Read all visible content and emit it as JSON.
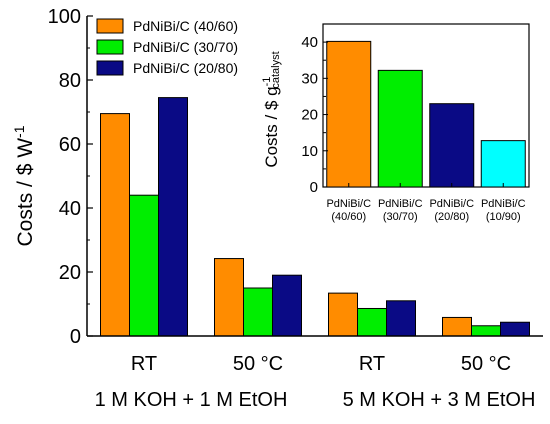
{
  "chart_data": [
    {
      "type": "bar",
      "ylabel_main": "Costs / $ W",
      "ylabel_sup": "-1",
      "ylim": [
        0,
        100
      ],
      "yticks": [
        0,
        20,
        40,
        60,
        80,
        100
      ],
      "categories": [
        "RT",
        "50 °C",
        "RT",
        "50 °C"
      ],
      "groups": [
        "1 M KOH + 1 M EtOH",
        "5 M KOH + 3 M EtOH"
      ],
      "series": [
        {
          "name": "PdNiBi/C (40/60)",
          "color": "#FF8C00",
          "values": [
            69.5,
            24.2,
            13.4,
            5.8
          ]
        },
        {
          "name": "PdNiBi/C (30/70)",
          "color": "#00EE00",
          "values": [
            44.0,
            15.0,
            8.6,
            3.2
          ]
        },
        {
          "name": "PdNiBi/C (20/80)",
          "color": "#0A0A85",
          "values": [
            74.5,
            19.0,
            11.0,
            4.3
          ]
        }
      ],
      "legend_position": "top-left"
    },
    {
      "type": "bar",
      "ylabel_main": "Costs / $ g",
      "ylabel_sup": "-1",
      "ylabel_sub": "catalyst",
      "ylim": [
        0,
        45
      ],
      "yticks": [
        0,
        10,
        20,
        30,
        40
      ],
      "categories": [
        {
          "line1": "PdNiBi/C",
          "line2": "(40/60)"
        },
        {
          "line1": "PdNiBi/C",
          "line2": "(30/70)"
        },
        {
          "line1": "PdNiBi/C",
          "line2": "(20/80)"
        },
        {
          "line1": "PdNiBi/C",
          "line2": "(10/90)"
        }
      ],
      "values": [
        40.2,
        32.2,
        23.0,
        12.8
      ],
      "colors": [
        "#FF8C00",
        "#00EE00",
        "#0A0A85",
        "#00FFFF"
      ]
    }
  ]
}
